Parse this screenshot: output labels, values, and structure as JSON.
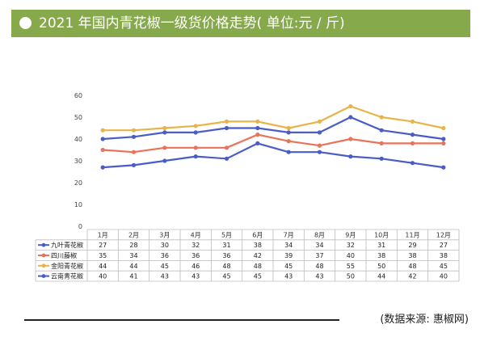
{
  "header": {
    "title": "2021 年国内青花椒一级货价格走势( 单位:元 / 斤)",
    "bg_color": "#86a94b"
  },
  "source": "(数据来源: 惠椒网)",
  "chart_data": {
    "type": "line",
    "title": "2021 年国内青花椒一级货价格走势( 单位:元 / 斤)",
    "categories": [
      "1月",
      "2月",
      "3月",
      "4月",
      "5月",
      "6月",
      "7月",
      "8月",
      "9月",
      "10月",
      "11月",
      "12月"
    ],
    "ylim": [
      0,
      60
    ],
    "yticks": [
      "0",
      "10",
      "20",
      "30",
      "40",
      "50",
      "60"
    ],
    "grid": false,
    "legend": "table-left",
    "series": [
      {
        "name": "九叶青花椒",
        "color": "#4a5cc7",
        "values": [
          27,
          28,
          30,
          32,
          31,
          38,
          34,
          34,
          32,
          31,
          29,
          27
        ]
      },
      {
        "name": "四川藤椒",
        "color": "#e8735a",
        "values": [
          35,
          34,
          36,
          36,
          36,
          42,
          39,
          37,
          40,
          38,
          38,
          38
        ]
      },
      {
        "name": "金阳青花椒",
        "color": "#e8b44a",
        "values": [
          44,
          44,
          45,
          46,
          48,
          48,
          45,
          48,
          55,
          50,
          48,
          45
        ]
      },
      {
        "name": "云南青花椒",
        "color": "#4a5cc7",
        "values": [
          40,
          41,
          43,
          43,
          45,
          45,
          43,
          43,
          50,
          44,
          42,
          40
        ]
      }
    ]
  }
}
